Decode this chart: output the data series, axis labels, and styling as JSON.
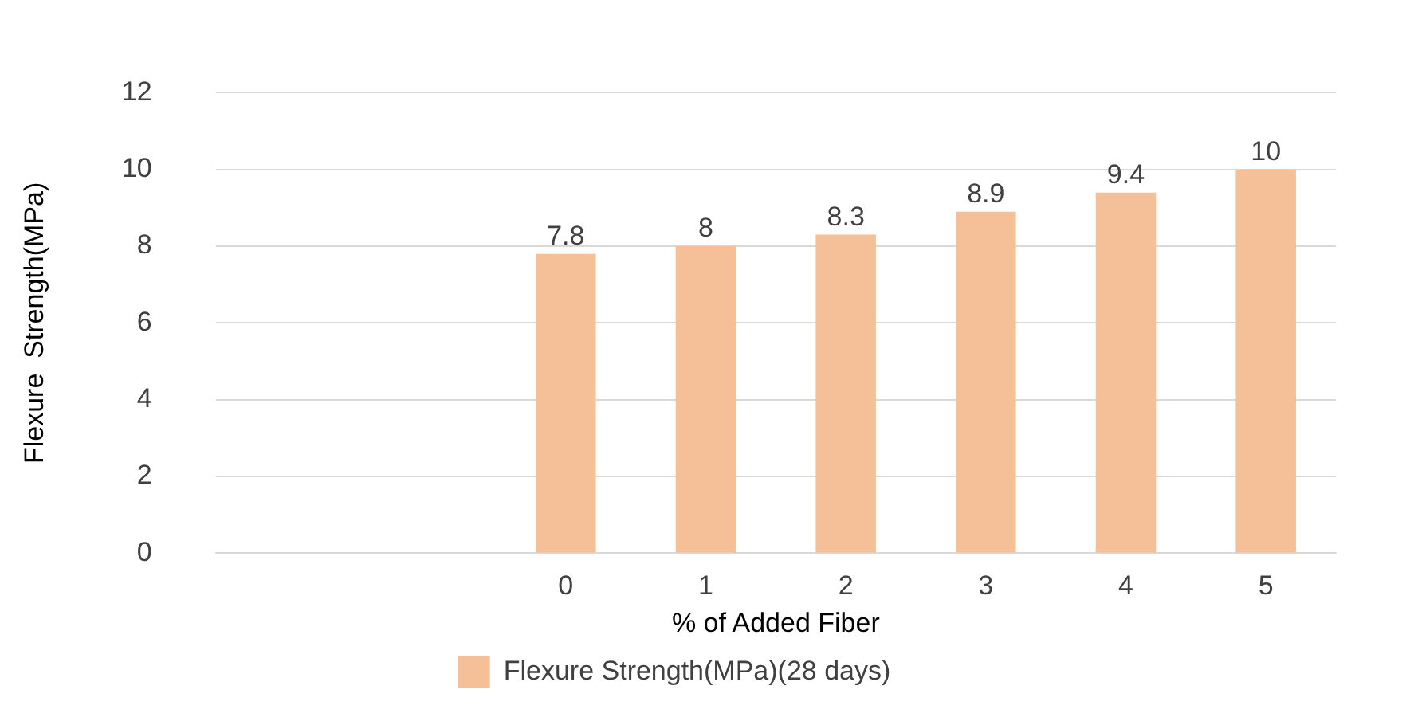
{
  "chart_data": {
    "type": "bar",
    "xlabel": "% of Added Fiber",
    "ylabel": "Flexure  Strength(MPa)",
    "categories": [
      null,
      null,
      "0",
      "1",
      "2",
      "3",
      "4",
      "5"
    ],
    "series": [
      {
        "name": "Flexure Strength(MPa)(28 days)",
        "color": "#f5bf97",
        "values": [
          null,
          null,
          7.8,
          8,
          8.3,
          8.9,
          9.4,
          10
        ]
      }
    ],
    "ylim": [
      0,
      12
    ],
    "yticks": [
      0,
      2,
      4,
      6,
      8,
      10,
      12
    ],
    "grid": "y",
    "legend": "bottom",
    "data_labels": true
  }
}
